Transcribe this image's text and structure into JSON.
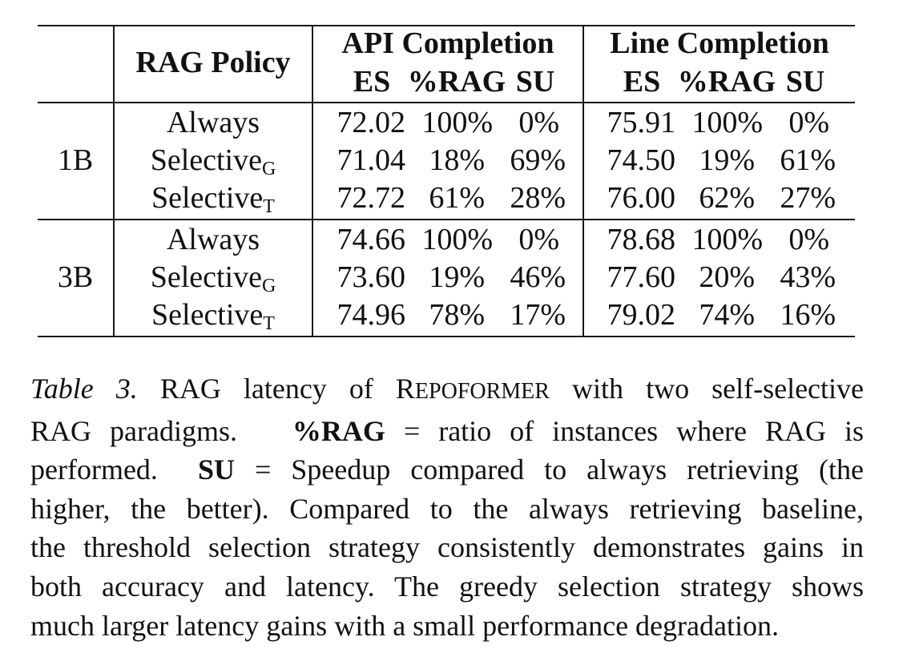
{
  "table": {
    "col_rag_policy": "RAG Policy",
    "group_api": "API Completion",
    "group_line": "Line Completion",
    "sub_headers": [
      "ES",
      "%RAG",
      "SU"
    ],
    "blocks": [
      {
        "model": "1B",
        "rows": [
          {
            "policy": "Always",
            "policy_sub": "",
            "api": [
              "72.02",
              "100%",
              "0%"
            ],
            "line": [
              "75.91",
              "100%",
              "0%"
            ]
          },
          {
            "policy": "Selective",
            "policy_sub": "G",
            "api": [
              "71.04",
              "18%",
              "69%"
            ],
            "line": [
              "74.50",
              "19%",
              "61%"
            ]
          },
          {
            "policy": "Selective",
            "policy_sub": "T",
            "api": [
              "72.72",
              "61%",
              "28%"
            ],
            "line": [
              "76.00",
              "62%",
              "27%"
            ]
          }
        ]
      },
      {
        "model": "3B",
        "rows": [
          {
            "policy": "Always",
            "policy_sub": "",
            "api": [
              "74.66",
              "100%",
              "0%"
            ],
            "line": [
              "78.68",
              "100%",
              "0%"
            ]
          },
          {
            "policy": "Selective",
            "policy_sub": "G",
            "api": [
              "73.60",
              "19%",
              "46%"
            ],
            "line": [
              "77.60",
              "20%",
              "43%"
            ]
          },
          {
            "policy": "Selective",
            "policy_sub": "T",
            "api": [
              "74.96",
              "78%",
              "17%"
            ],
            "line": [
              "79.02",
              "74%",
              "16%"
            ]
          }
        ]
      }
    ]
  },
  "caption": {
    "label": "Table 3.",
    "line1_pre": "RAG latency of ",
    "name_first": "R",
    "name_rest": "EPOFORMER",
    "line1_post": " with two self-selective",
    "line2_pre": "RAG paradigms.",
    "line2_bold": "%RAG",
    "line2_post": "= ratio of instances where RAG is",
    "line3_pre": "performed.",
    "line3_bold": "SU",
    "line3_post": "= Speedup compared to always retrieving (the",
    "line4": "higher, the better). Compared to the always retrieving baseline,",
    "line5": "the threshold selection strategy consistently demonstrates gains in",
    "line6": "both accuracy and latency. The greedy selection strategy shows",
    "line7": "much larger latency gains with a small performance degradation."
  }
}
